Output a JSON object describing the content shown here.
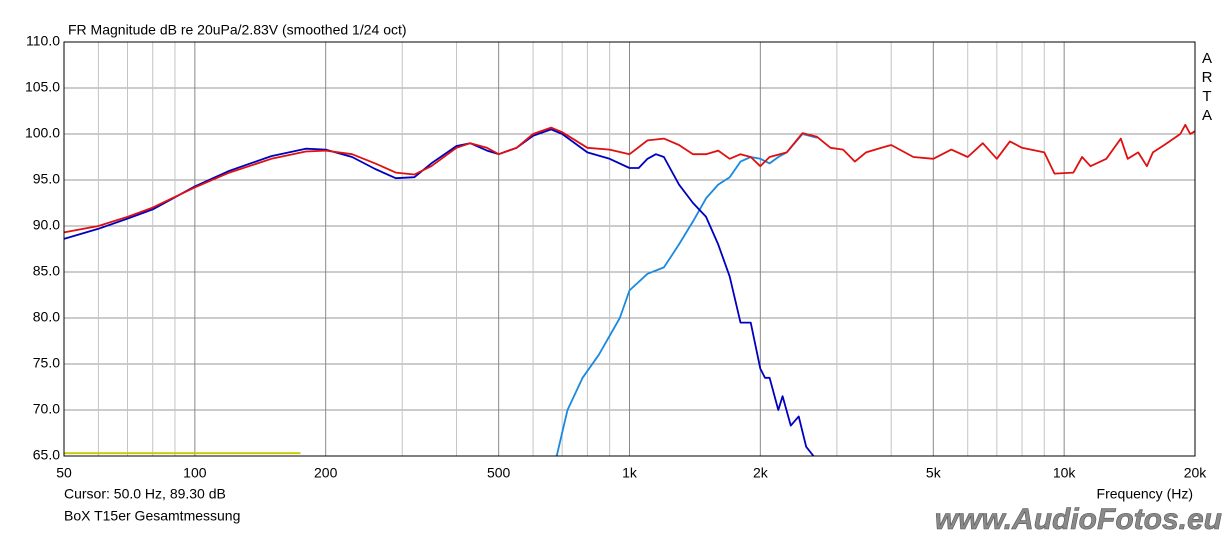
{
  "chart_data": {
    "type": "line",
    "title": "FR Magnitude dB re 20uPa/2.83V (smoothed 1/24 oct)",
    "brand": "ARTA",
    "cursor": "Cursor: 50.0 Hz, 89.30 dB",
    "x_label": "Frequency (Hz)",
    "caption": "BoX T15er Gesamtmessung",
    "watermark": "www.AudioFotos.eu",
    "xscale": "log",
    "grid": true,
    "xlim": [
      50,
      20000
    ],
    "ylim": [
      65,
      110
    ],
    "xticks": [
      50,
      100,
      200,
      500,
      {
        "value": 1000,
        "label": "1k"
      },
      {
        "value": 2000,
        "label": "2k"
      },
      {
        "value": 5000,
        "label": "5k"
      },
      {
        "value": 10000,
        "label": "10k"
      },
      {
        "value": 20000,
        "label": "20k"
      }
    ],
    "xminorticks": [
      60,
      70,
      80,
      90,
      300,
      400,
      600,
      700,
      800,
      900,
      3000,
      4000,
      6000,
      7000,
      8000,
      9000
    ],
    "yticks": [
      {
        "value": 65,
        "label": "65.0"
      },
      {
        "value": 70,
        "label": "70.0"
      },
      {
        "value": 75,
        "label": "75.0"
      },
      {
        "value": 80,
        "label": "80.0"
      },
      {
        "value": 85,
        "label": "85.0"
      },
      {
        "value": 90,
        "label": "90.0"
      },
      {
        "value": 95,
        "label": "95.0"
      },
      {
        "value": 100,
        "label": "100.0"
      },
      {
        "value": 105,
        "label": "105.0"
      },
      {
        "value": 110,
        "label": "110.0"
      }
    ],
    "series": [
      {
        "color": "#c8c800",
        "x": [
          50,
          175
        ],
        "values": [
          65.3,
          65.3
        ]
      },
      {
        "color": "#1a8ae0",
        "x": [
          680,
          720,
          780,
          850,
          950,
          1000,
          1100,
          1200,
          1300,
          1400,
          1500,
          1600,
          1700,
          1800,
          1900,
          2000,
          2100,
          2200,
          2300,
          2500,
          2700
        ],
        "values": [
          65.0,
          70.0,
          73.5,
          76.0,
          80.0,
          83.0,
          84.8,
          85.5,
          88.0,
          90.5,
          93.0,
          94.5,
          95.3,
          97.0,
          97.5,
          97.3,
          96.8,
          97.5,
          98.0,
          100.0,
          99.6
        ]
      },
      {
        "color": "#0000c0",
        "x": [
          50,
          60,
          70,
          80,
          100,
          120,
          150,
          180,
          200,
          230,
          260,
          290,
          320,
          350,
          400,
          430,
          470,
          500,
          550,
          600,
          660,
          700,
          800,
          900,
          1000,
          1050,
          1100,
          1150,
          1200,
          1300,
          1400,
          1500,
          1600,
          1700,
          1800,
          1900,
          2000,
          2050,
          2100,
          2200,
          2250,
          2350,
          2450,
          2550,
          2650
        ],
        "values": [
          88.6,
          89.7,
          90.8,
          91.8,
          94.3,
          96.0,
          97.6,
          98.4,
          98.3,
          97.5,
          96.2,
          95.2,
          95.3,
          96.8,
          98.7,
          99.0,
          98.2,
          97.8,
          98.5,
          99.8,
          100.5,
          100.0,
          98.0,
          97.3,
          96.3,
          96.3,
          97.3,
          97.8,
          97.5,
          94.5,
          92.5,
          91.0,
          88.0,
          84.5,
          79.5,
          79.5,
          74.5,
          73.5,
          73.5,
          70.0,
          71.5,
          68.3,
          69.3,
          66.0,
          65.0
        ]
      },
      {
        "color": "#e01010",
        "x": [
          50,
          60,
          70,
          80,
          100,
          120,
          150,
          180,
          200,
          230,
          260,
          290,
          320,
          350,
          400,
          430,
          470,
          500,
          550,
          600,
          660,
          700,
          800,
          900,
          1000,
          1100,
          1200,
          1300,
          1400,
          1500,
          1600,
          1700,
          1800,
          1900,
          2000,
          2100,
          2300,
          2500,
          2700,
          2900,
          3100,
          3300,
          3500,
          3800,
          4000,
          4500,
          5000,
          5500,
          6000,
          6500,
          7000,
          7500,
          8000,
          9000,
          9500,
          10500,
          11000,
          11500,
          12500,
          13500,
          14000,
          14800,
          15500,
          16000,
          17000,
          18500,
          19000,
          19500,
          20000
        ],
        "values": [
          89.3,
          90.0,
          91.0,
          92.0,
          94.2,
          95.8,
          97.3,
          98.1,
          98.2,
          97.8,
          96.8,
          95.8,
          95.6,
          96.5,
          98.5,
          99.0,
          98.5,
          97.8,
          98.5,
          100.0,
          100.7,
          100.2,
          98.5,
          98.3,
          97.8,
          99.3,
          99.5,
          98.8,
          97.8,
          97.8,
          98.2,
          97.3,
          97.8,
          97.5,
          96.5,
          97.5,
          98.0,
          100.1,
          99.7,
          98.5,
          98.3,
          97.0,
          98.0,
          98.5,
          98.8,
          97.5,
          97.3,
          98.3,
          97.5,
          99.0,
          97.3,
          99.2,
          98.5,
          98.0,
          95.7,
          95.8,
          97.5,
          96.5,
          97.3,
          99.5,
          97.3,
          98.0,
          96.5,
          98.0,
          98.8,
          100.0,
          101.0,
          100.0,
          100.3
        ]
      }
    ]
  }
}
